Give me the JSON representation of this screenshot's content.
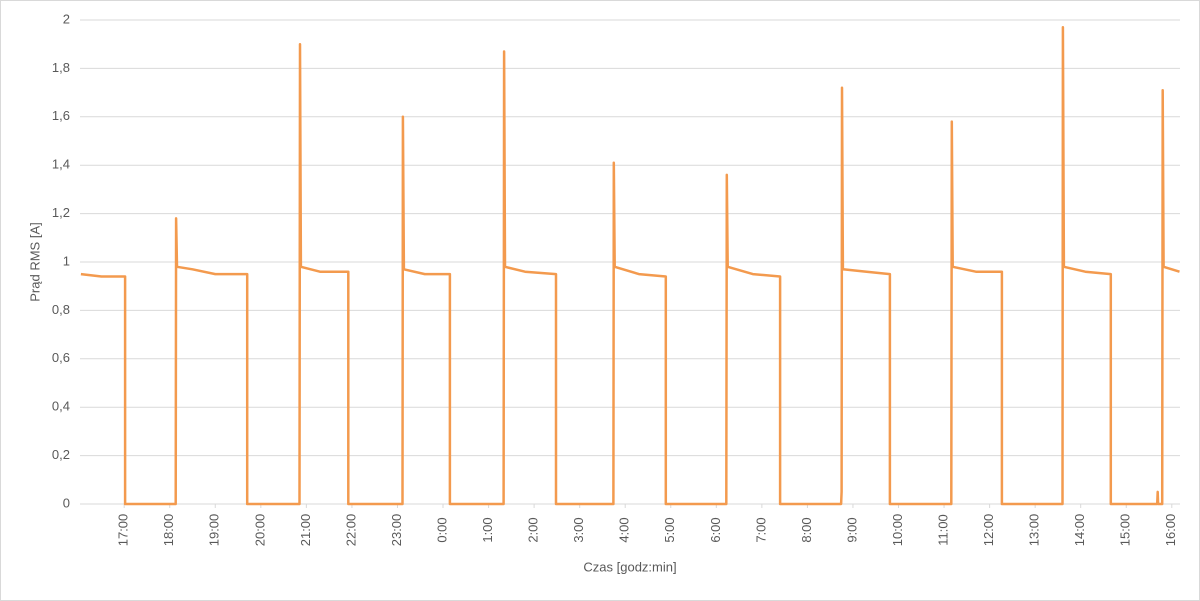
{
  "chart_data": {
    "type": "line",
    "x_label": "Czas [godz:min]",
    "y_label": "Prąd RMS [A]",
    "color": "#f39a4e",
    "grid": true,
    "xlim": [
      16.03,
      40.18
    ],
    "ylim": [
      0,
      2
    ],
    "xticks": [
      {
        "value": 17,
        "label": "17:00"
      },
      {
        "value": 18,
        "label": "18:00"
      },
      {
        "value": 19,
        "label": "19:00"
      },
      {
        "value": 20,
        "label": "20:00"
      },
      {
        "value": 21,
        "label": "21:00"
      },
      {
        "value": 22,
        "label": "22:00"
      },
      {
        "value": 23,
        "label": "23:00"
      },
      {
        "value": 24,
        "label": "0:00"
      },
      {
        "value": 25,
        "label": "1:00"
      },
      {
        "value": 26,
        "label": "2:00"
      },
      {
        "value": 27,
        "label": "3:00"
      },
      {
        "value": 28,
        "label": "4:00"
      },
      {
        "value": 29,
        "label": "5:00"
      },
      {
        "value": 30,
        "label": "6:00"
      },
      {
        "value": 31,
        "label": "7:00"
      },
      {
        "value": 32,
        "label": "8:00"
      },
      {
        "value": 33,
        "label": "9:00"
      },
      {
        "value": 34,
        "label": "10:00"
      },
      {
        "value": 35,
        "label": "11:00"
      },
      {
        "value": 36,
        "label": "12:00"
      },
      {
        "value": 37,
        "label": "13:00"
      },
      {
        "value": 38,
        "label": "14:00"
      },
      {
        "value": 39,
        "label": "15:00"
      },
      {
        "value": 40,
        "label": "16:00"
      }
    ],
    "yticks": [
      0,
      {
        "value": 0.2,
        "label": "0,2"
      },
      {
        "value": 0.4,
        "label": "0,4"
      },
      {
        "value": 0.6,
        "label": "0,6"
      },
      {
        "value": 0.8,
        "label": "0,8"
      },
      1,
      {
        "value": 1.2,
        "label": "1,2"
      },
      {
        "value": 1.4,
        "label": "1,4"
      },
      {
        "value": 1.6,
        "label": "1,6"
      },
      {
        "value": 1.8,
        "label": "1,8"
      },
      2
    ],
    "x": [
      16.05,
      16.5,
      17.02,
      17.02,
      18.13,
      18.14,
      18.16,
      18.5,
      19.0,
      19.7,
      19.7,
      20.85,
      20.86,
      20.88,
      21.3,
      21.92,
      21.92,
      23.11,
      23.12,
      23.14,
      23.6,
      24.15,
      24.15,
      25.33,
      25.34,
      25.36,
      25.8,
      26.48,
      26.48,
      27.74,
      27.75,
      27.77,
      28.3,
      28.89,
      28.89,
      30.22,
      30.23,
      30.25,
      30.8,
      31.4,
      31.4,
      32.74,
      32.75,
      32.76,
      32.78,
      33.3,
      33.81,
      33.81,
      35.16,
      35.17,
      35.19,
      35.7,
      36.27,
      36.27,
      37.6,
      37.61,
      37.63,
      38.1,
      38.66,
      38.66,
      39.68,
      39.69,
      39.7,
      39.79,
      39.8,
      39.82,
      40.0,
      40.17
    ],
    "values": [
      0.95,
      0.94,
      0.94,
      0,
      0,
      1.18,
      0.98,
      0.97,
      0.95,
      0.95,
      0,
      0,
      1.9,
      0.98,
      0.96,
      0.96,
      0,
      0,
      1.6,
      0.97,
      0.95,
      0.95,
      0,
      0,
      1.87,
      0.98,
      0.96,
      0.95,
      0,
      0,
      1.41,
      0.98,
      0.95,
      0.94,
      0,
      0,
      1.36,
      0.98,
      0.95,
      0.94,
      0,
      0,
      0.05,
      1.72,
      0.97,
      0.96,
      0.95,
      0,
      0,
      1.58,
      0.98,
      0.96,
      0.96,
      0,
      0,
      1.97,
      0.98,
      0.96,
      0.95,
      0,
      0,
      0.05,
      0,
      0,
      1.71,
      0.98,
      0.97,
      0.96
    ]
  }
}
